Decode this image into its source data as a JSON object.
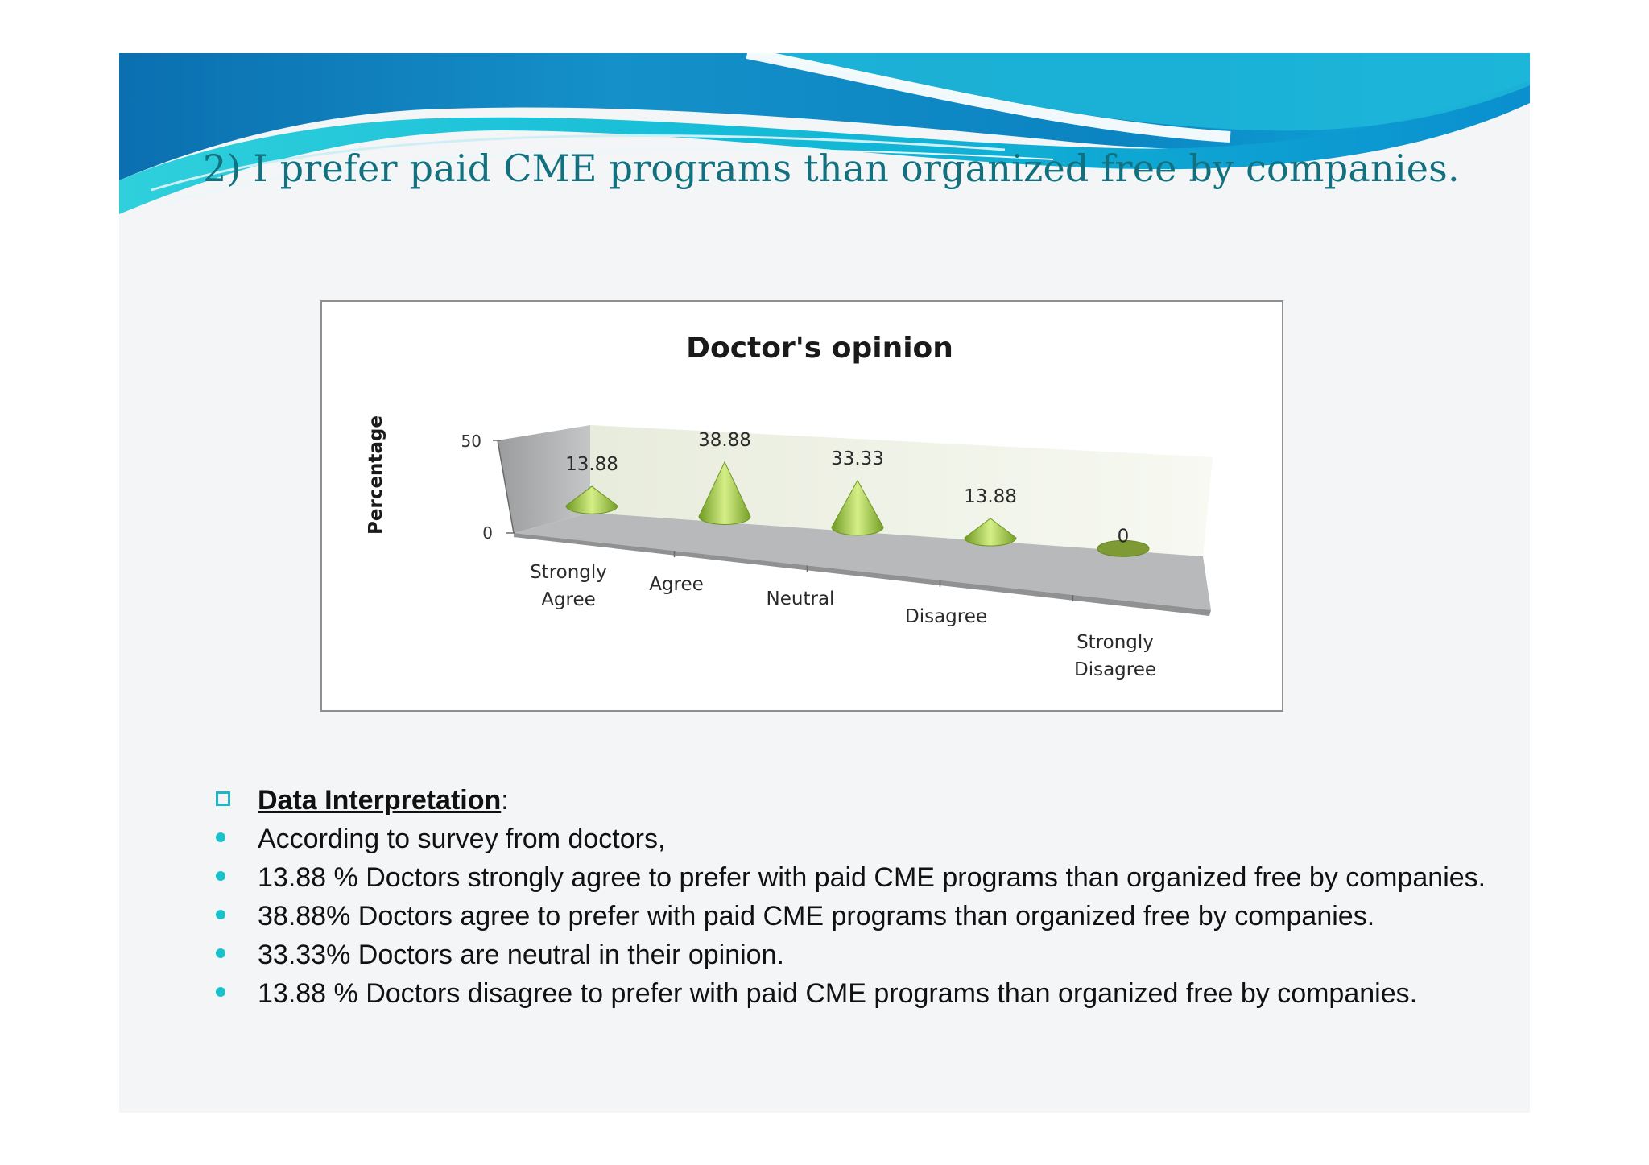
{
  "slide": {
    "title": "2) I prefer paid CME programs than organized free by companies."
  },
  "colors": {
    "title": "#13707e",
    "cone": "#a6cc52",
    "bullet": "#19c2c9"
  },
  "chart_data": {
    "type": "bar",
    "style": "3d-cone",
    "title": "Doctor's opinion",
    "ylabel": "Percentage",
    "xlabel": "",
    "ylim": [
      0,
      50
    ],
    "yticks": [
      "0",
      "50"
    ],
    "categories": [
      [
        "Strongly",
        "Agree"
      ],
      [
        "Agree"
      ],
      [
        "Neutral"
      ],
      [
        "Disagree"
      ],
      [
        "Strongly",
        "Disagree"
      ]
    ],
    "values": [
      13.88,
      38.88,
      33.33,
      13.88,
      0
    ],
    "data_labels": [
      "13.88",
      "38.88",
      "33.33",
      "13.88",
      "0"
    ],
    "legend": "none",
    "grid": false
  },
  "interpretation": {
    "heading": "Data Interpretation",
    "colon": ":",
    "bullets": [
      "According to survey from doctors,",
      "13.88 % Doctors strongly agree to prefer with paid CME programs than organized free by companies.",
      "38.88% Doctors agree to prefer with paid CME programs than organized free by companies.",
      "33.33% Doctors are neutral in their opinion.",
      "13.88 % Doctors disagree to prefer with paid CME programs than organized free by companies."
    ]
  }
}
